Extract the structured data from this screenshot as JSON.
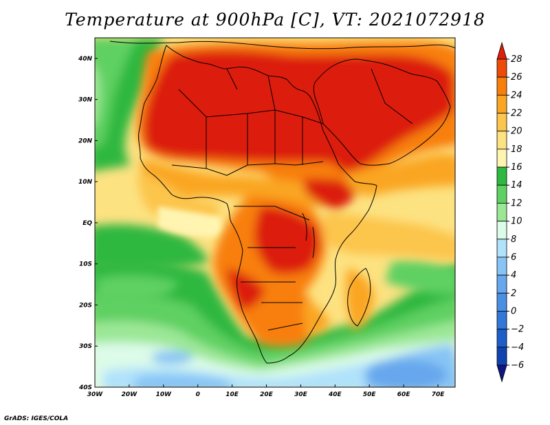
{
  "title": "Temperature at 900hPa [C], VT: 2021072918",
  "credit": "GrADS: IGES/COLA",
  "map": {
    "lon_range": [
      -30,
      75
    ],
    "lat_range": [
      -40,
      45
    ],
    "lon_ticks": [
      "30W",
      "20W",
      "10W",
      "0",
      "10E",
      "20E",
      "30E",
      "40E",
      "50E",
      "60E",
      "70E"
    ],
    "lat_ticks": [
      "40N",
      "30N",
      "20N",
      "10N",
      "EQ",
      "10S",
      "20S",
      "30S",
      "40S"
    ]
  },
  "colorbar": {
    "labels": [
      "28",
      "26",
      "24",
      "22",
      "20",
      "18",
      "16",
      "14",
      "12",
      "10",
      "8",
      "6",
      "4",
      "2",
      "0",
      "−2",
      "−4",
      "−6"
    ],
    "colors": [
      "#dc1e0a",
      "#ee4a08",
      "#f87f0a",
      "#faa624",
      "#fcc54c",
      "#fde282",
      "#fff4b0",
      "#2db83f",
      "#5fd062",
      "#9be796",
      "#dcfbe9",
      "#b0e2fb",
      "#87c4f5",
      "#66a7ed",
      "#4a8fe4",
      "#3278d8",
      "#1e5ec8",
      "#1043b0",
      "#101680"
    ]
  }
}
